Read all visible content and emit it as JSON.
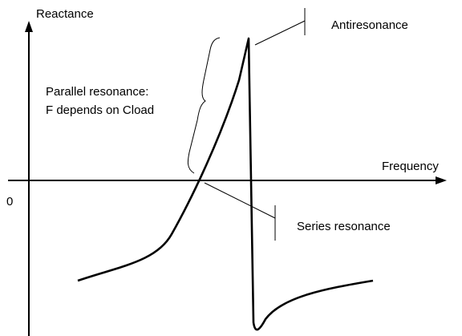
{
  "axes": {
    "y_label": "Reactance",
    "x_label": "Frequency",
    "origin_label": "0"
  },
  "annotations": {
    "antiresonance": "Antiresonance",
    "parallel_line1": "Parallel resonance:",
    "parallel_line2": "F depends on Cload",
    "series": "Series resonance"
  }
}
